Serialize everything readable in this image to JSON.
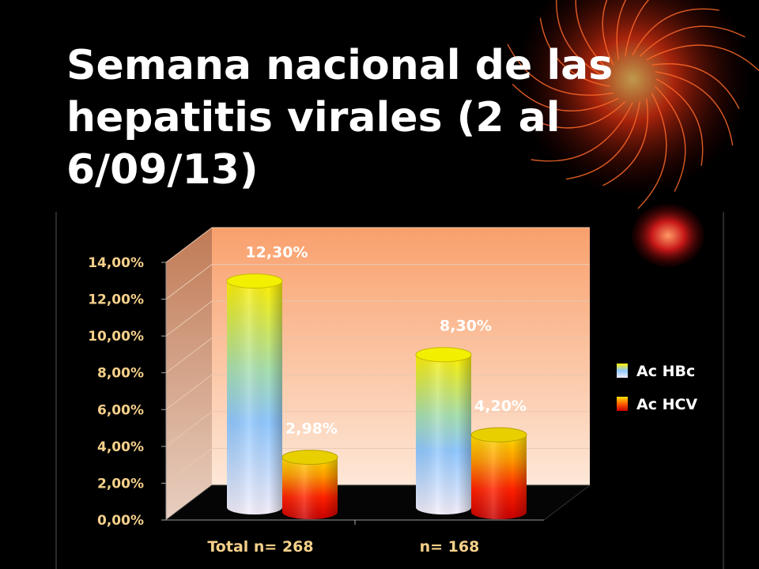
{
  "title": "Semana nacional de las hepatitis virales (2 al 6/09/13)",
  "colors": {
    "background": "#000000",
    "wall_top": "#f9a06c",
    "wall_bottom": "#fde8d8",
    "axis_text": "#f5d08a"
  },
  "chart_data": {
    "type": "bar",
    "categories": [
      "Total n= 268",
      "n= 168"
    ],
    "series": [
      {
        "name": "Ac HBc",
        "values": [
          12.3,
          8.3
        ],
        "labels": [
          "12,30%",
          "8,30%"
        ]
      },
      {
        "name": "Ac HCV",
        "values": [
          2.98,
          4.2
        ],
        "labels": [
          "2,98%",
          "4,20%"
        ]
      }
    ],
    "y_ticks": [
      "0,00%",
      "2,00%",
      "4,00%",
      "6,00%",
      "8,00%",
      "10,00%",
      "12,00%",
      "14,00%"
    ],
    "ylim": [
      0,
      14
    ],
    "grid": true,
    "legend": "right",
    "style": "3d-cylinder"
  }
}
